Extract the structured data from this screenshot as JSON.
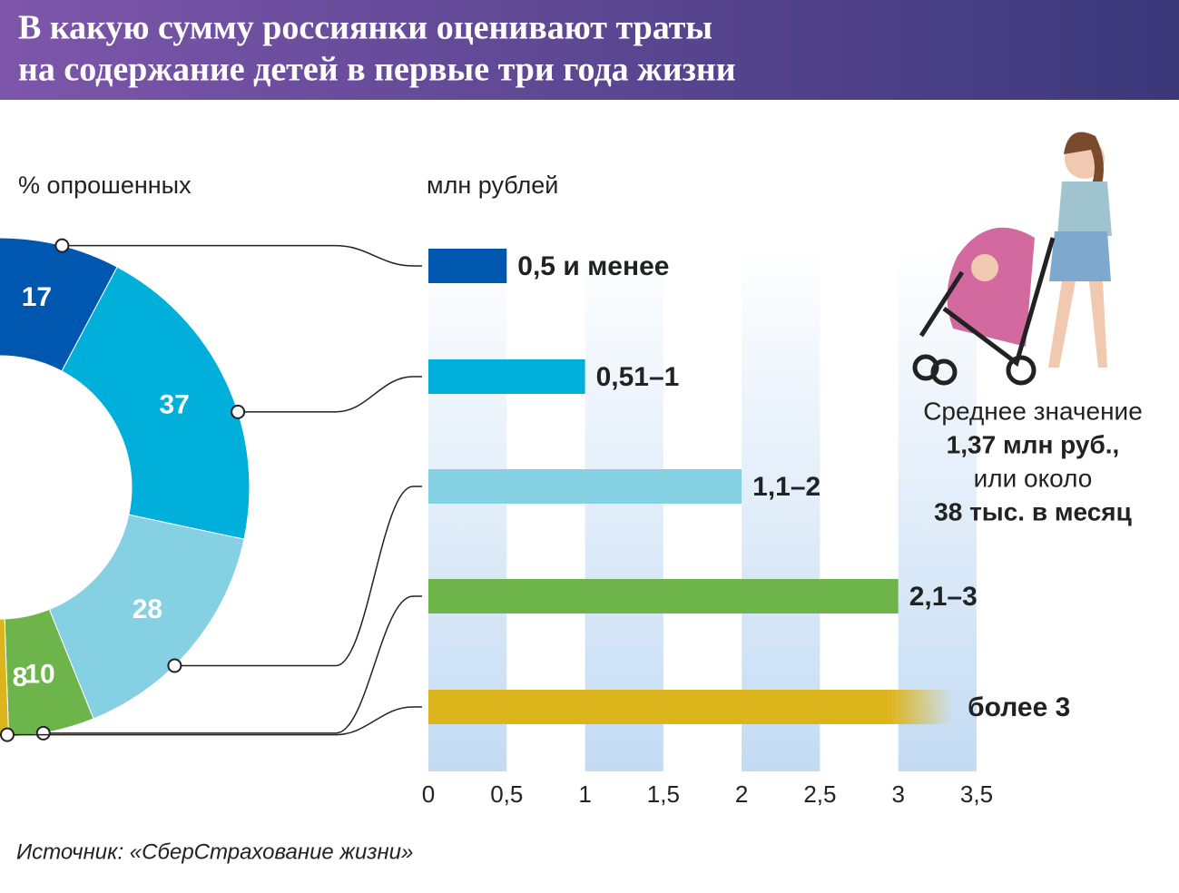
{
  "title_lines": [
    "В какую сумму россиянки оценивают траты",
    "на содержание детей в первые три года жизни"
  ],
  "chart_data": [
    {
      "type": "pie",
      "axis_label": "% опрошенных",
      "values": [
        17,
        37,
        28,
        10,
        8
      ],
      "colors": [
        "#0057b0",
        "#00b0da",
        "#85d0e2",
        "#6db54a",
        "#dcb41c"
      ]
    },
    {
      "type": "bar",
      "axis_label": "млн рублей",
      "categories": [
        "0,5 и менее",
        "0,51–1",
        "1,1–2",
        "2,1–3",
        "более 3"
      ],
      "values": [
        0.5,
        1,
        2,
        3,
        3.35
      ],
      "colors": [
        "#0057b0",
        "#00b0da",
        "#85d0e2",
        "#6db54a",
        "#dcb41c"
      ],
      "xlim": [
        0,
        3.5
      ],
      "xticks": [
        0,
        {
          "value": 0.5,
          "label": "0,5"
        },
        1,
        {
          "value": 1.5,
          "label": "1,5"
        },
        2,
        {
          "value": 2.5,
          "label": "2,5"
        },
        3,
        {
          "value": 3.5,
          "label": "3,5"
        }
      ]
    }
  ],
  "annotation_lines": [
    "Среднее значение",
    "1,37 млн руб.,",
    "или около",
    "38 тыс. в месяц"
  ],
  "source": "Источник: «СберСтрахование жизни»"
}
